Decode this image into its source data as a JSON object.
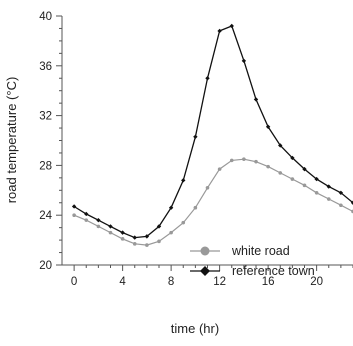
{
  "chart_data": {
    "type": "line",
    "xlabel": "time (hr)",
    "ylabel": "road temperature (°C)",
    "xlim": [
      -1,
      23
    ],
    "ylim": [
      20,
      40
    ],
    "x_ticks": [
      0,
      4,
      8,
      12,
      16,
      20
    ],
    "y_ticks": [
      20,
      24,
      28,
      32,
      36,
      40
    ],
    "grid": false,
    "legend_position": "bottom-right",
    "series": [
      {
        "name": "white road",
        "color": "#999999",
        "marker": "circle",
        "x": [
          0,
          1,
          2,
          3,
          4,
          5,
          6,
          7,
          8,
          9,
          10,
          11,
          12,
          13,
          14,
          15,
          16,
          17,
          18,
          19,
          20,
          21,
          22,
          23
        ],
        "y": [
          24.0,
          23.6,
          23.1,
          22.6,
          22.1,
          21.7,
          21.6,
          21.9,
          22.6,
          23.4,
          24.6,
          26.2,
          27.7,
          28.4,
          28.5,
          28.3,
          27.9,
          27.4,
          26.9,
          26.4,
          25.8,
          25.3,
          24.8,
          24.3
        ]
      },
      {
        "name": "reference town",
        "color": "#111111",
        "marker": "diamond",
        "x": [
          0,
          1,
          2,
          3,
          4,
          5,
          6,
          7,
          8,
          9,
          10,
          11,
          12,
          13,
          14,
          15,
          16,
          17,
          18,
          19,
          20,
          21,
          22,
          23
        ],
        "y": [
          24.7,
          24.1,
          23.6,
          23.1,
          22.6,
          22.2,
          22.3,
          23.1,
          24.6,
          26.8,
          30.3,
          35.0,
          38.8,
          39.2,
          36.4,
          33.3,
          31.1,
          29.6,
          28.6,
          27.7,
          26.9,
          26.3,
          25.8,
          25.0
        ]
      }
    ]
  }
}
